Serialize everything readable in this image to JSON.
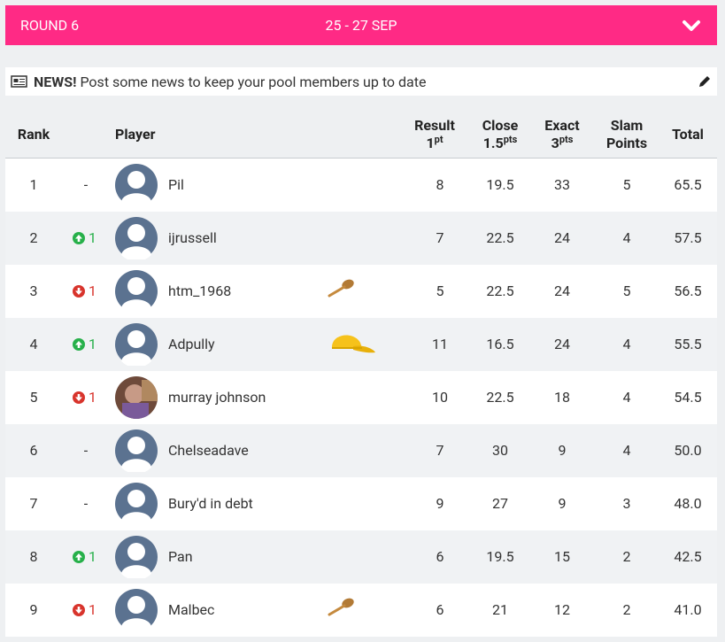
{
  "header": {
    "round": "ROUND 6",
    "dates": "25 - 27 SEP"
  },
  "news": {
    "label": "NEWS!",
    "text": "Post some news to keep your pool members up to date"
  },
  "table": {
    "columns": [
      {
        "label": "Rank"
      },
      {
        "label": "Player"
      },
      {
        "label": "Result",
        "value": "1",
        "unit": "pt"
      },
      {
        "label": "Close",
        "value": "1.5",
        "unit": "pts"
      },
      {
        "label": "Exact",
        "value": "3",
        "unit": "pts"
      },
      {
        "label": "Slam Points"
      },
      {
        "label": "Total"
      }
    ],
    "rows": [
      {
        "rank": "1",
        "move": {
          "dir": "none",
          "text": "-"
        },
        "player": "Pil",
        "avatar": "default",
        "badge": "none",
        "result": "8",
        "close": "19.5",
        "exact": "33",
        "slam": "5",
        "total": "65.5"
      },
      {
        "rank": "2",
        "move": {
          "dir": "up",
          "text": "1"
        },
        "player": "ijrussell",
        "avatar": "default",
        "badge": "none",
        "result": "7",
        "close": "22.5",
        "exact": "24",
        "slam": "4",
        "total": "57.5"
      },
      {
        "rank": "3",
        "move": {
          "dir": "down",
          "text": "1"
        },
        "player": "htm_1968",
        "avatar": "default",
        "badge": "spoon",
        "result": "5",
        "close": "22.5",
        "exact": "24",
        "slam": "5",
        "total": "56.5"
      },
      {
        "rank": "4",
        "move": {
          "dir": "up",
          "text": "1"
        },
        "player": "Adpully",
        "avatar": "default",
        "badge": "cap",
        "result": "11",
        "close": "16.5",
        "exact": "24",
        "slam": "4",
        "total": "55.5"
      },
      {
        "rank": "5",
        "move": {
          "dir": "down",
          "text": "1"
        },
        "player": "murray johnson",
        "avatar": "photo",
        "badge": "none",
        "result": "10",
        "close": "22.5",
        "exact": "18",
        "slam": "4",
        "total": "54.5"
      },
      {
        "rank": "6",
        "move": {
          "dir": "none",
          "text": "-"
        },
        "player": "Chelseadave",
        "avatar": "default",
        "badge": "none",
        "result": "7",
        "close": "30",
        "exact": "9",
        "slam": "4",
        "total": "50.0"
      },
      {
        "rank": "7",
        "move": {
          "dir": "none",
          "text": "-"
        },
        "player": "Bury'd in debt",
        "avatar": "default",
        "badge": "none",
        "result": "9",
        "close": "27",
        "exact": "9",
        "slam": "3",
        "total": "48.0"
      },
      {
        "rank": "8",
        "move": {
          "dir": "up",
          "text": "1"
        },
        "player": "Pan",
        "avatar": "default",
        "badge": "none",
        "result": "6",
        "close": "19.5",
        "exact": "15",
        "slam": "2",
        "total": "42.5"
      },
      {
        "rank": "9",
        "move": {
          "dir": "down",
          "text": "1"
        },
        "player": "Malbec",
        "avatar": "default",
        "badge": "spoon",
        "result": "6",
        "close": "21",
        "exact": "12",
        "slam": "2",
        "total": "41.0"
      }
    ]
  }
}
